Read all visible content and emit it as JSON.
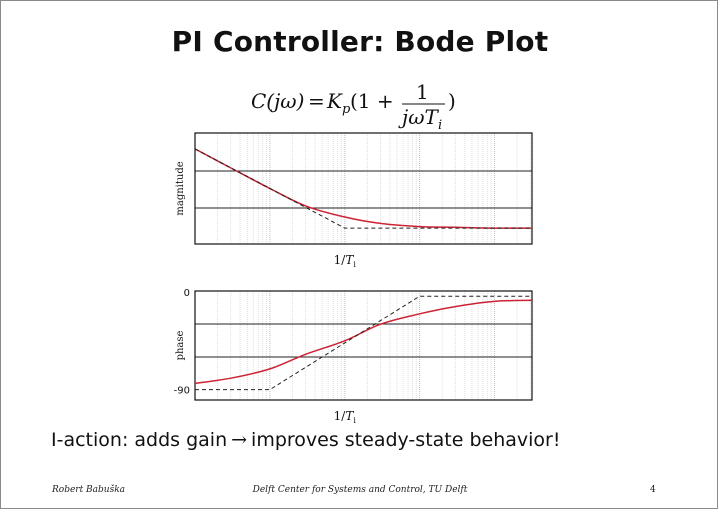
{
  "slide": {
    "title": "PI Controller: Bode Plot",
    "formula": {
      "lhs": "C(jω)",
      "rhs_gain": "K",
      "rhs_gain_sub": "p",
      "rhs_open": "(1 +",
      "numerator": "1",
      "denominator": "jωT",
      "denominator_sub": "i",
      "rhs_close": ")"
    },
    "statement": {
      "before_arrow": "I-action: adds gain",
      "arrow": "→",
      "after_arrow": "improves steady-state behavior!"
    },
    "footer": {
      "author": "Robert Babuška",
      "institution": "Delft Center for Systems and Control, TU Delft",
      "page": "4"
    }
  },
  "chart_data": [
    {
      "type": "line",
      "title": "",
      "ylabel": "magnitude",
      "xlabel": "1/T_i",
      "xscale": "log",
      "x_ticklabel": "1/T_i",
      "corner_frequency": 1,
      "x_range_decades": [
        -2,
        2.5
      ],
      "y_unlabeled": true,
      "grid": true,
      "series": [
        {
          "style": "solid red",
          "x": [
            0.01,
            0.03,
            0.1,
            0.3,
            1,
            3,
            10,
            30,
            100,
            316
          ],
          "y": [
            1.0,
            0.76,
            0.5,
            0.28,
            0.14,
            0.06,
            0.02,
            0.01,
            0.0,
            0.0
          ]
        },
        {
          "style": "dashed black",
          "x": [
            0.01,
            1,
            316
          ],
          "y": [
            1.0,
            0.0,
            0.0
          ]
        }
      ]
    },
    {
      "type": "line",
      "title": "",
      "ylabel": "phase",
      "xlabel": "1/T_i",
      "xscale": "log",
      "x_ticklabel": "1/T_i",
      "corner_frequency": 1,
      "x_range_decades": [
        -2,
        2.5
      ],
      "ylim": [
        -90,
        0
      ],
      "yticks": [
        "0",
        "-90"
      ],
      "grid": true,
      "series": [
        {
          "style": "solid red",
          "x": [
            0.01,
            0.03,
            0.1,
            0.3,
            1,
            3,
            10,
            30,
            100,
            316
          ],
          "y": [
            -84,
            -79,
            -70,
            -56,
            -43,
            -27,
            -17,
            -10,
            -5,
            -4
          ]
        },
        {
          "style": "dashed black",
          "x": [
            0.01,
            0.1,
            1,
            10,
            100,
            316
          ],
          "y": [
            -90,
            -90,
            -45,
            0,
            0,
            0
          ]
        }
      ]
    }
  ]
}
